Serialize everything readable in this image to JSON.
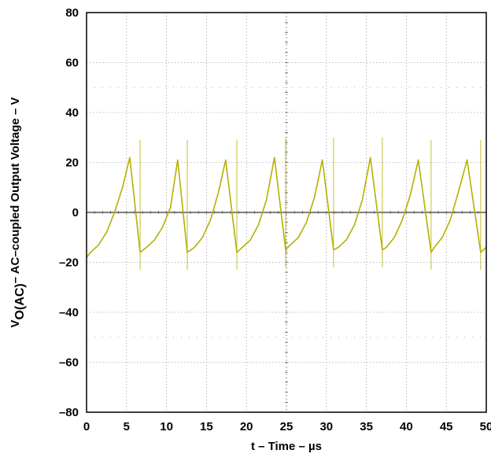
{
  "chart_data": {
    "type": "line",
    "xlabel": "t – Time – µs",
    "ylabel": {
      "prefix": "V",
      "subscript": "O(AC)",
      "rest": "– AC–coupled Output Voltage – V"
    },
    "xlim": [
      0,
      50
    ],
    "ylim": [
      -80,
      80
    ],
    "x_ticks": [
      0,
      5,
      10,
      15,
      20,
      25,
      30,
      35,
      40,
      45,
      50
    ],
    "y_ticks": [
      80,
      60,
      40,
      20,
      0,
      -20,
      -40,
      -60,
      -80
    ],
    "x_tick_labels": [
      "0",
      "5",
      "10",
      "15",
      "20",
      "25",
      "30",
      "35",
      "40",
      "45",
      "50"
    ],
    "y_tick_labels": [
      "80",
      "60",
      "40",
      "20",
      "0",
      "–20",
      "–40",
      "–60",
      "–80"
    ],
    "grid": true,
    "series": [
      {
        "color": "#b5b000",
        "description": "sawtooth waveform, ~6 µs period, rising from about -18 V to 22 V then falling sharply",
        "x": [
          0,
          0.5,
          1.5,
          2.5,
          3.5,
          4.5,
          5.4,
          6.7,
          7.5,
          8.5,
          9.5,
          10.5,
          11.4,
          12.6,
          13.5,
          14.5,
          15.5,
          16.5,
          17.4,
          18.8,
          19.5,
          20.5,
          21.5,
          22.5,
          23.5,
          24.9,
          25.5,
          26.5,
          27.5,
          28.5,
          29.5,
          30.9,
          31.5,
          32.5,
          33.5,
          34.5,
          35.5,
          37.0,
          37.5,
          38.5,
          39.5,
          40.5,
          41.5,
          43.1,
          43.5,
          44.5,
          45.5,
          46.5,
          47.6,
          49.3,
          50
        ],
        "y": [
          -18,
          -16,
          -13,
          -8,
          0,
          10,
          22,
          -16,
          -14,
          -11,
          -6,
          2,
          21,
          -16,
          -14,
          -10,
          -3,
          8,
          21,
          -16,
          -14,
          -11,
          -5,
          5,
          22,
          -15,
          -13,
          -10,
          -4,
          6,
          21,
          -15,
          -14,
          -11,
          -5,
          5,
          22,
          -15,
          -14,
          -10,
          -3,
          7,
          21,
          -16,
          -14,
          -10,
          -3,
          8,
          21,
          -16,
          -14
        ]
      }
    ]
  }
}
